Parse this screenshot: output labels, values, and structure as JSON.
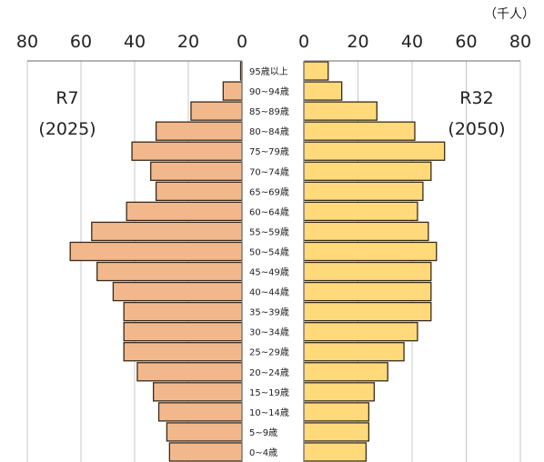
{
  "chart_data": {
    "type": "bar",
    "orientation": "horizontal",
    "layout": "population-pyramid",
    "unit_label": "（千人）",
    "x_ticks": [
      0,
      20,
      40,
      60,
      80
    ],
    "xlim": [
      0,
      80
    ],
    "grid": true,
    "categories": [
      "0~4歳",
      "5~9歳",
      "10~14歳",
      "15~19歳",
      "20~24歳",
      "25~29歳",
      "30~34歳",
      "35~39歳",
      "40~44歳",
      "45~49歳",
      "50~54歳",
      "55~59歳",
      "60~64歳",
      "65~69歳",
      "70~74歳",
      "75~79歳",
      "80~84歳",
      "85~89歳",
      "90~94歳",
      "95歳以上"
    ],
    "series": [
      {
        "name": "R7",
        "year_label": "(2025)",
        "side": "left",
        "color": "#F2B88C",
        "values": [
          27,
          28,
          31,
          33,
          39,
          44,
          44,
          44,
          48,
          54,
          64,
          56,
          43,
          32,
          34,
          41,
          32,
          19,
          7,
          0.5
        ]
      },
      {
        "name": "R32",
        "year_label": "(2050)",
        "side": "right",
        "color": "#FFD97A",
        "values": [
          23,
          24,
          24,
          26,
          31,
          37,
          42,
          47,
          47,
          47,
          49,
          46,
          42,
          44,
          47,
          52,
          41,
          27,
          14,
          9
        ]
      }
    ]
  }
}
